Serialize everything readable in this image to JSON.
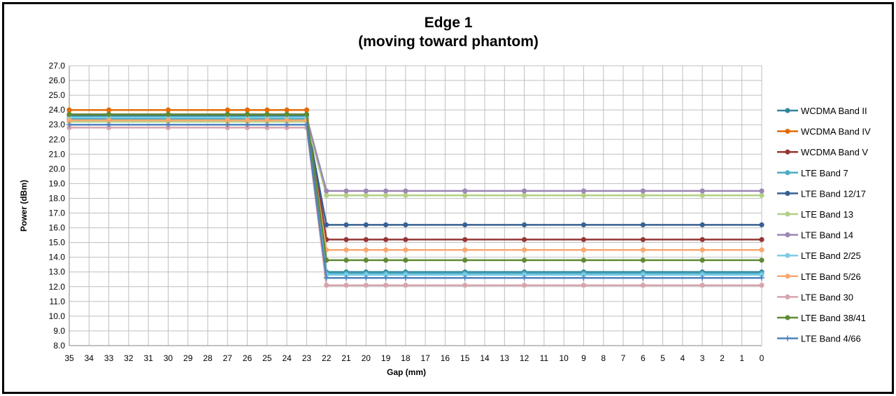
{
  "chart_data": {
    "type": "line",
    "title": "Edge 1",
    "subtitle": "(moving toward phantom)",
    "xlabel": "Gap (mm)",
    "ylabel": "Power (dBm)",
    "x_ticks": [
      35,
      34,
      33,
      32,
      31,
      30,
      29,
      28,
      27,
      26,
      25,
      24,
      23,
      22,
      21,
      20,
      19,
      18,
      17,
      16,
      15,
      14,
      13,
      12,
      11,
      10,
      9,
      8,
      7,
      6,
      5,
      4,
      3,
      2,
      1,
      0
    ],
    "x_reversed": true,
    "ylim": [
      8.0,
      27.0
    ],
    "y_step": 1.0,
    "grid": true,
    "legend_position": "right",
    "x": [
      35,
      33,
      30,
      27,
      26,
      25,
      24,
      23,
      22,
      21,
      20,
      19,
      18,
      15,
      12,
      9,
      6,
      3,
      0
    ],
    "series": [
      {
        "name": "WCDMA Band II",
        "color": "#31859c",
        "marker": "circle",
        "values": [
          23.6,
          23.6,
          23.6,
          23.6,
          23.6,
          23.6,
          23.6,
          23.6,
          13.0,
          13.0,
          13.0,
          13.0,
          13.0,
          13.0,
          13.0,
          13.0,
          13.0,
          13.0,
          13.0
        ]
      },
      {
        "name": "WCDMA Band IV",
        "color": "#e36c09",
        "marker": "circle",
        "values": [
          24.0,
          24.0,
          24.0,
          24.0,
          24.0,
          24.0,
          24.0,
          24.0,
          12.9,
          12.9,
          12.9,
          12.9,
          12.9,
          12.9,
          12.9,
          12.9,
          12.9,
          12.9,
          12.9
        ]
      },
      {
        "name": "WCDMA Band V",
        "color": "#953735",
        "marker": "circle",
        "values": [
          23.7,
          23.7,
          23.7,
          23.7,
          23.7,
          23.7,
          23.7,
          23.7,
          15.2,
          15.2,
          15.2,
          15.2,
          15.2,
          15.2,
          15.2,
          15.2,
          15.2,
          15.2,
          15.2
        ]
      },
      {
        "name": "LTE Band 7",
        "color": "#4bacc6",
        "marker": "circle",
        "values": [
          23.4,
          23.4,
          23.4,
          23.4,
          23.4,
          23.4,
          23.4,
          23.4,
          12.9,
          12.9,
          12.9,
          12.9,
          12.9,
          12.9,
          12.9,
          12.9,
          12.9,
          12.9,
          12.9
        ]
      },
      {
        "name": "LTE Band 12/17",
        "color": "#376092",
        "marker": "circle",
        "values": [
          23.3,
          23.3,
          23.3,
          23.3,
          23.3,
          23.3,
          23.3,
          23.3,
          16.2,
          16.2,
          16.2,
          16.2,
          16.2,
          16.2,
          16.2,
          16.2,
          16.2,
          16.2,
          16.2
        ]
      },
      {
        "name": "LTE Band 13",
        "color": "#b3d084",
        "marker": "circle",
        "values": [
          23.2,
          23.2,
          23.2,
          23.2,
          23.2,
          23.2,
          23.2,
          23.2,
          18.2,
          18.2,
          18.2,
          18.2,
          18.2,
          18.2,
          18.2,
          18.2,
          18.2,
          18.2,
          18.2
        ]
      },
      {
        "name": "LTE Band 14",
        "color": "#9b86b4",
        "marker": "circle",
        "values": [
          23.5,
          23.5,
          23.5,
          23.5,
          23.5,
          23.5,
          23.5,
          23.5,
          18.5,
          18.5,
          18.5,
          18.5,
          18.5,
          18.5,
          18.5,
          18.5,
          18.5,
          18.5,
          18.5
        ]
      },
      {
        "name": "LTE Band 2/25",
        "color": "#7ccde4",
        "marker": "circle",
        "values": [
          23.5,
          23.5,
          23.5,
          23.5,
          23.5,
          23.5,
          23.5,
          23.5,
          12.8,
          12.8,
          12.8,
          12.8,
          12.8,
          12.8,
          12.8,
          12.8,
          12.8,
          12.8,
          12.8
        ]
      },
      {
        "name": "LTE Band 5/26",
        "color": "#f9a870",
        "marker": "circle",
        "values": [
          23.3,
          23.3,
          23.3,
          23.3,
          23.3,
          23.3,
          23.3,
          23.3,
          14.5,
          14.5,
          14.5,
          14.5,
          14.5,
          14.5,
          14.5,
          14.5,
          14.5,
          14.5,
          14.5
        ]
      },
      {
        "name": "LTE Band 30",
        "color": "#d7a4ad",
        "marker": "circle",
        "values": [
          22.8,
          22.8,
          22.8,
          22.8,
          22.8,
          22.8,
          22.8,
          22.8,
          12.1,
          12.1,
          12.1,
          12.1,
          12.1,
          12.1,
          12.1,
          12.1,
          12.1,
          12.1,
          12.1
        ]
      },
      {
        "name": "LTE Band 38/41",
        "color": "#5f8b35",
        "marker": "circle",
        "values": [
          23.7,
          23.7,
          23.7,
          23.7,
          23.7,
          23.7,
          23.7,
          23.7,
          13.8,
          13.8,
          13.8,
          13.8,
          13.8,
          13.8,
          13.8,
          13.8,
          13.8,
          13.8,
          13.8
        ]
      },
      {
        "name": "LTE Band 4/66",
        "color": "#4f81bd",
        "marker": "plus",
        "values": [
          23.0,
          23.0,
          23.0,
          23.0,
          23.0,
          23.0,
          23.0,
          23.0,
          12.6,
          12.6,
          12.6,
          12.6,
          12.6,
          12.6,
          12.6,
          12.6,
          12.6,
          12.6,
          12.6
        ]
      }
    ]
  }
}
